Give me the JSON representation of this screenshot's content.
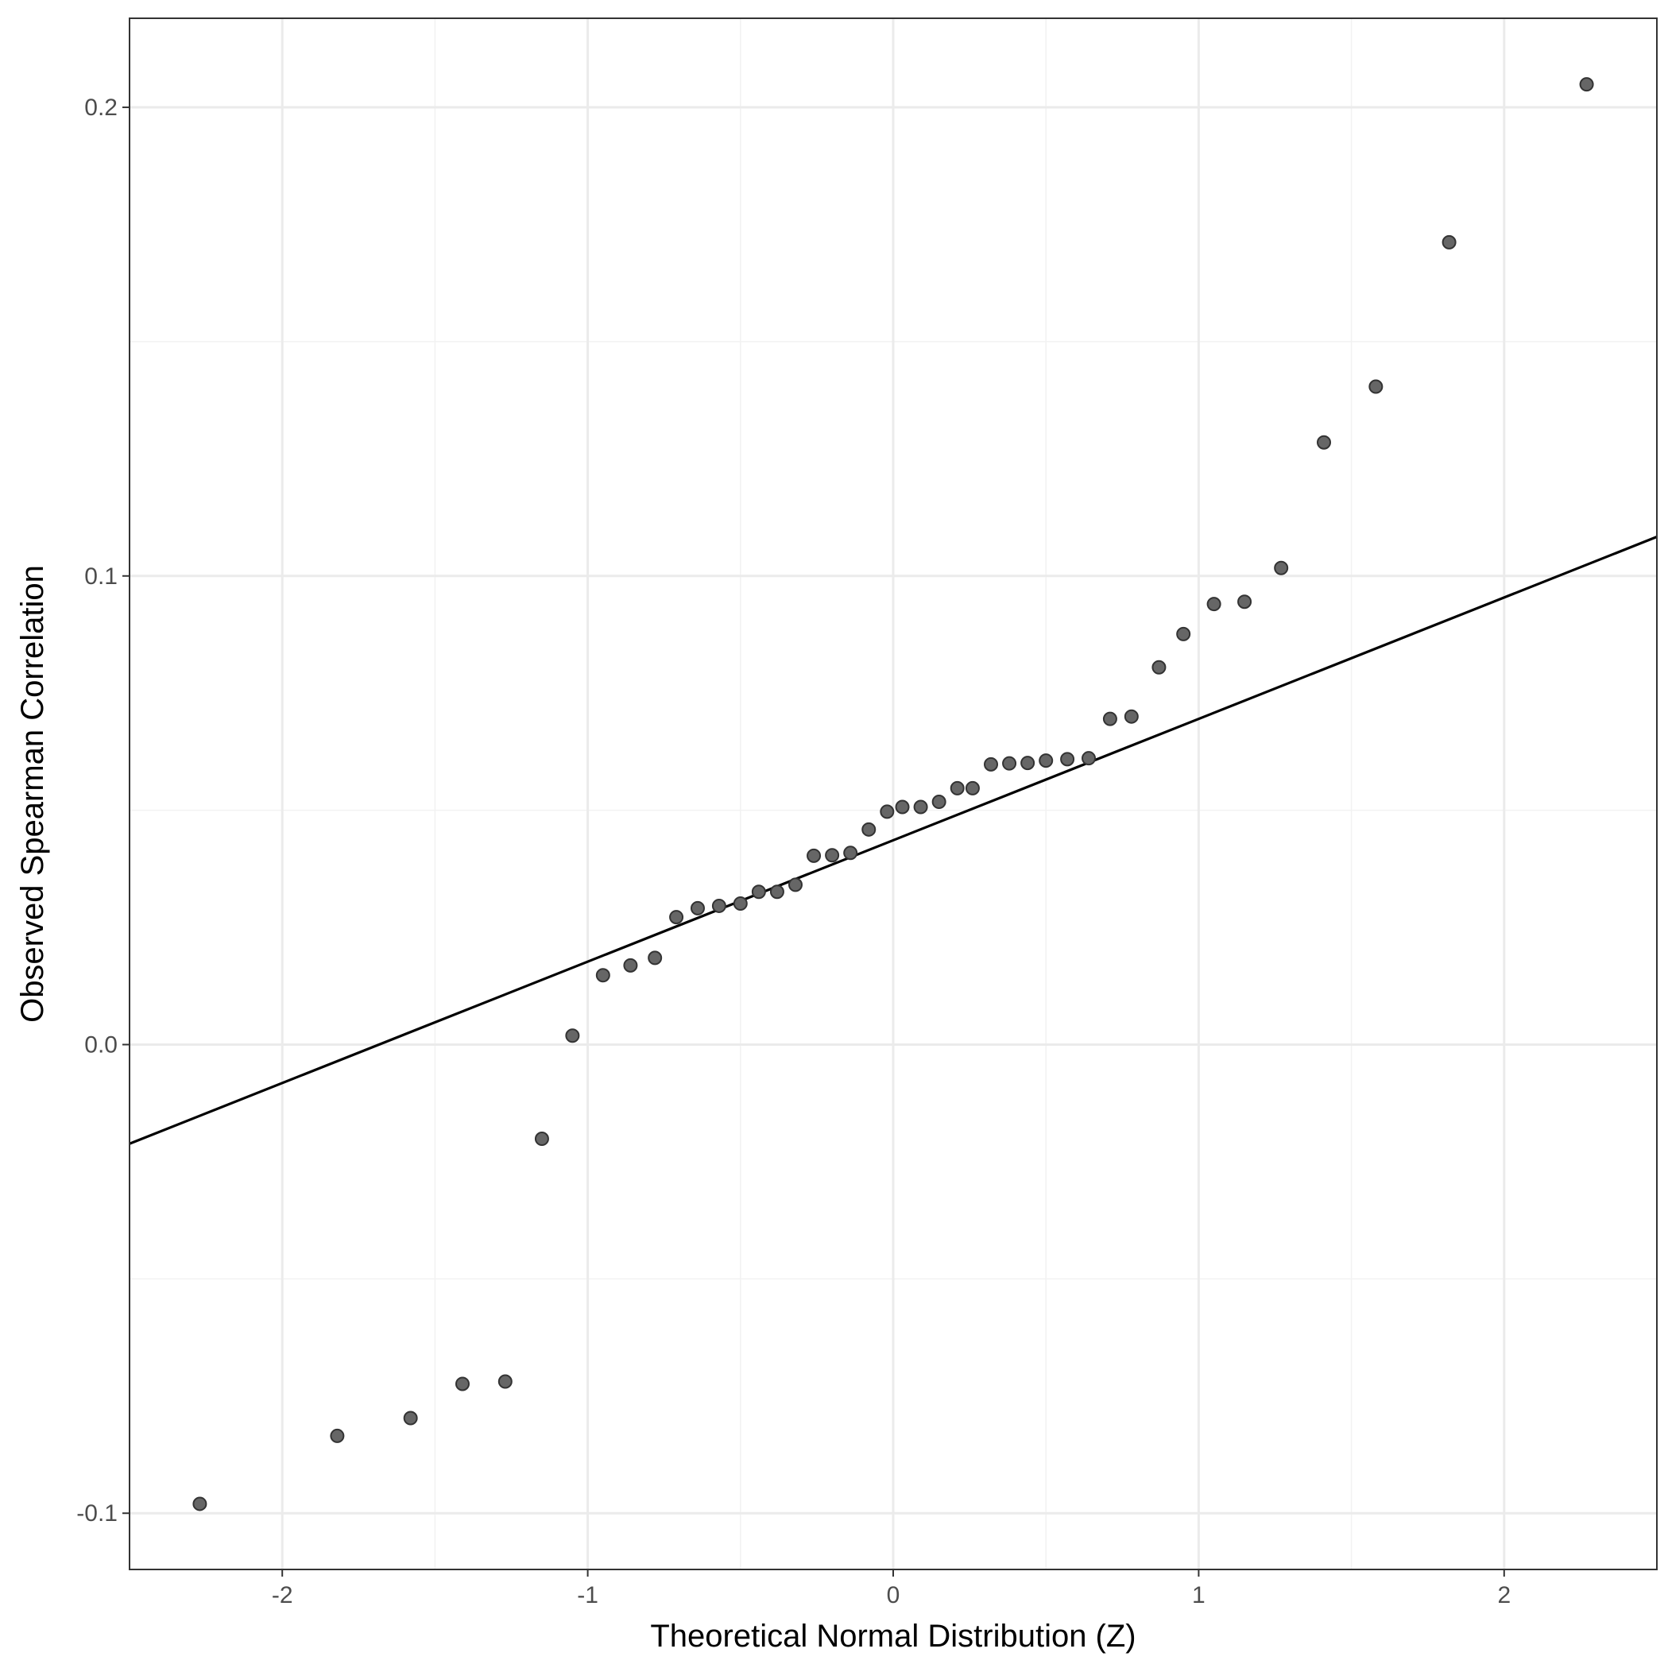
{
  "chart_data": {
    "type": "scatter",
    "title": "",
    "xlabel": "Theoretical Normal Distribution (Z)",
    "ylabel": "Observed Spearman Correlation",
    "xlim": [
      -2.5,
      2.5
    ],
    "ylim": [
      -0.112,
      0.219
    ],
    "x_ticks": [
      -2,
      -1,
      0,
      1,
      2
    ],
    "x_tick_labels": [
      "-2",
      "-1",
      "0",
      "1",
      "2"
    ],
    "y_ticks": [
      -0.1,
      0.0,
      0.1,
      0.2
    ],
    "y_tick_labels": [
      "-0.1",
      "0.0",
      "0.1",
      "0.2"
    ],
    "grid": true,
    "legend": "none",
    "point_color": "#666666",
    "point_edge_color": "#333333",
    "line_color": "#000000",
    "reference_line": {
      "intercept": 0.0436,
      "slope": 0.0259
    },
    "points": [
      {
        "x": -2.27,
        "y": -0.098
      },
      {
        "x": -1.82,
        "y": -0.0835
      },
      {
        "x": -1.58,
        "y": -0.0797
      },
      {
        "x": -1.41,
        "y": -0.0724
      },
      {
        "x": -1.27,
        "y": -0.0719
      },
      {
        "x": -1.15,
        "y": -0.0201
      },
      {
        "x": -1.05,
        "y": 0.0019
      },
      {
        "x": -0.95,
        "y": 0.0148
      },
      {
        "x": -0.86,
        "y": 0.0169
      },
      {
        "x": -0.78,
        "y": 0.0185
      },
      {
        "x": -0.71,
        "y": 0.0272
      },
      {
        "x": -0.64,
        "y": 0.0291
      },
      {
        "x": -0.57,
        "y": 0.0296
      },
      {
        "x": -0.5,
        "y": 0.0301
      },
      {
        "x": -0.44,
        "y": 0.0326
      },
      {
        "x": -0.38,
        "y": 0.0326
      },
      {
        "x": -0.32,
        "y": 0.0341
      },
      {
        "x": -0.26,
        "y": 0.0403
      },
      {
        "x": -0.2,
        "y": 0.0404
      },
      {
        "x": -0.14,
        "y": 0.0409
      },
      {
        "x": -0.08,
        "y": 0.0459
      },
      {
        "x": -0.02,
        "y": 0.0497
      },
      {
        "x": 0.03,
        "y": 0.0507
      },
      {
        "x": 0.09,
        "y": 0.0507
      },
      {
        "x": 0.15,
        "y": 0.0518
      },
      {
        "x": 0.21,
        "y": 0.0547
      },
      {
        "x": 0.26,
        "y": 0.0547
      },
      {
        "x": 0.32,
        "y": 0.0598
      },
      {
        "x": 0.38,
        "y": 0.06
      },
      {
        "x": 0.44,
        "y": 0.0601
      },
      {
        "x": 0.5,
        "y": 0.0606
      },
      {
        "x": 0.57,
        "y": 0.0609
      },
      {
        "x": 0.64,
        "y": 0.0611
      },
      {
        "x": 0.71,
        "y": 0.0695
      },
      {
        "x": 0.78,
        "y": 0.07
      },
      {
        "x": 0.87,
        "y": 0.0805
      },
      {
        "x": 0.95,
        "y": 0.0876
      },
      {
        "x": 1.05,
        "y": 0.094
      },
      {
        "x": 1.15,
        "y": 0.0945
      },
      {
        "x": 1.27,
        "y": 0.1017
      },
      {
        "x": 1.41,
        "y": 0.1285
      },
      {
        "x": 1.58,
        "y": 0.1404
      },
      {
        "x": 1.82,
        "y": 0.1712
      },
      {
        "x": 2.27,
        "y": 0.2049
      }
    ]
  }
}
